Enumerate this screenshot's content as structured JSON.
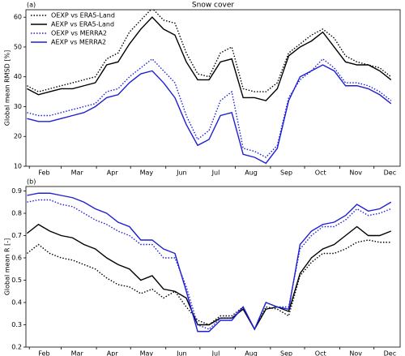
{
  "chart_data": [
    {
      "type": "line",
      "title": "Snow cover",
      "panel_label": "(a)",
      "ylabel": "Global mean RMSD [%]",
      "legend": "upper left",
      "x": [
        30,
        40,
        50,
        60,
        70,
        80,
        90,
        100,
        110,
        120,
        130,
        140,
        150,
        160,
        170,
        180,
        190,
        200,
        210,
        220,
        230,
        240,
        250,
        260,
        270,
        280,
        290,
        300,
        310,
        320,
        330,
        340,
        350
      ],
      "xlim": [
        29,
        358
      ],
      "xticks": [
        {
          "value": 45,
          "label": "Feb"
        },
        {
          "value": 74,
          "label": "Mar"
        },
        {
          "value": 105,
          "label": "Apr"
        },
        {
          "value": 135,
          "label": "May"
        },
        {
          "value": 166,
          "label": "Jun"
        },
        {
          "value": 196,
          "label": "Jul"
        },
        {
          "value": 227,
          "label": "Aug"
        },
        {
          "value": 258,
          "label": "Sep"
        },
        {
          "value": 288,
          "label": "Oct"
        },
        {
          "value": 319,
          "label": "Nov"
        },
        {
          "value": 349,
          "label": "Dec"
        }
      ],
      "xminorticks": [
        32,
        60,
        91,
        121,
        152,
        182,
        213,
        244,
        274,
        305,
        335
      ],
      "ylim": [
        10,
        62.5
      ],
      "yticks": [
        10,
        20,
        30,
        40,
        50,
        60
      ],
      "series": [
        {
          "name": "OEXP vs ERA5-Land",
          "color": "#000000",
          "linestyle": "dotted",
          "values": [
            37,
            35,
            36,
            37,
            38,
            39,
            40,
            46,
            48,
            55,
            59,
            63,
            59,
            58,
            48,
            41,
            40,
            48,
            50,
            36,
            35,
            35,
            38,
            48,
            51,
            54,
            56,
            53,
            47,
            45,
            44,
            43,
            40
          ]
        },
        {
          "name": "AEXP vs ERA5-Land",
          "color": "#000000",
          "linestyle": "solid",
          "values": [
            36,
            34,
            35,
            36,
            36,
            37,
            38,
            44,
            45,
            51,
            56,
            60,
            56,
            54,
            45,
            39,
            39,
            45,
            46,
            33,
            33,
            32,
            36,
            47,
            50,
            52,
            55,
            50,
            45,
            44,
            44,
            42,
            39
          ]
        },
        {
          "name": "OEXP vs MERRA2",
          "color": "#1f1fd6",
          "linestyle": "dotted",
          "values": [
            28,
            27,
            27,
            28,
            29,
            30,
            31,
            35,
            36,
            40,
            43,
            46,
            42,
            38,
            27,
            19,
            22,
            32,
            35,
            16,
            15,
            13,
            17,
            33,
            39,
            42,
            46,
            43,
            38,
            38,
            37,
            35,
            32
          ]
        },
        {
          "name": "AEXP vs MERRA2",
          "color": "#1f1fd6",
          "linestyle": "solid",
          "values": [
            26,
            25,
            25,
            26,
            27,
            28,
            30,
            33,
            34,
            38,
            41,
            42,
            38,
            33,
            24,
            17,
            19,
            27,
            28,
            14,
            13,
            11,
            16,
            32,
            40,
            42,
            44,
            42,
            37,
            37,
            36,
            34,
            31
          ]
        }
      ]
    },
    {
      "type": "line",
      "panel_label": "(b)",
      "ylabel": "Global mean R [-]",
      "x": [
        30,
        40,
        50,
        60,
        70,
        80,
        90,
        100,
        110,
        120,
        130,
        140,
        150,
        160,
        170,
        180,
        190,
        200,
        210,
        220,
        230,
        240,
        250,
        260,
        270,
        280,
        290,
        300,
        310,
        320,
        330,
        340,
        350
      ],
      "xlim": [
        29,
        358
      ],
      "xticks": [
        {
          "value": 45,
          "label": "Feb"
        },
        {
          "value": 74,
          "label": "Mar"
        },
        {
          "value": 105,
          "label": "Apr"
        },
        {
          "value": 135,
          "label": "May"
        },
        {
          "value": 166,
          "label": "Jun"
        },
        {
          "value": 196,
          "label": "Jul"
        },
        {
          "value": 227,
          "label": "Aug"
        },
        {
          "value": 258,
          "label": "Sep"
        },
        {
          "value": 288,
          "label": "Oct"
        },
        {
          "value": 319,
          "label": "Nov"
        },
        {
          "value": 349,
          "label": "Dec"
        }
      ],
      "xminorticks": [
        32,
        60,
        91,
        121,
        152,
        182,
        213,
        244,
        274,
        305,
        335
      ],
      "ylim": [
        0.2,
        0.92
      ],
      "yticks": [
        0.2,
        0.3,
        0.4,
        0.5,
        0.6,
        0.7,
        0.8,
        0.9
      ],
      "series": [
        {
          "color": "#000000",
          "linestyle": "dotted",
          "values": [
            0.62,
            0.66,
            0.62,
            0.6,
            0.59,
            0.57,
            0.55,
            0.51,
            0.48,
            0.47,
            0.44,
            0.46,
            0.42,
            0.45,
            0.38,
            0.32,
            0.3,
            0.34,
            0.34,
            0.38,
            0.28,
            0.38,
            0.37,
            0.34,
            0.52,
            0.58,
            0.62,
            0.62,
            0.64,
            0.67,
            0.68,
            0.67,
            0.67
          ]
        },
        {
          "color": "#000000",
          "linestyle": "solid",
          "values": [
            0.71,
            0.75,
            0.72,
            0.7,
            0.69,
            0.66,
            0.64,
            0.6,
            0.57,
            0.55,
            0.5,
            0.52,
            0.46,
            0.45,
            0.42,
            0.3,
            0.3,
            0.33,
            0.33,
            0.37,
            0.28,
            0.37,
            0.38,
            0.36,
            0.53,
            0.6,
            0.64,
            0.66,
            0.7,
            0.74,
            0.7,
            0.7,
            0.72
          ]
        },
        {
          "color": "#1f1fd6",
          "linestyle": "dotted",
          "values": [
            0.85,
            0.86,
            0.86,
            0.84,
            0.83,
            0.8,
            0.77,
            0.75,
            0.72,
            0.7,
            0.66,
            0.66,
            0.6,
            0.6,
            0.47,
            0.3,
            0.28,
            0.33,
            0.33,
            0.38,
            0.28,
            0.4,
            0.38,
            0.38,
            0.64,
            0.7,
            0.74,
            0.74,
            0.77,
            0.82,
            0.79,
            0.8,
            0.82
          ]
        },
        {
          "color": "#1f1fd6",
          "linestyle": "solid",
          "values": [
            0.88,
            0.89,
            0.89,
            0.88,
            0.87,
            0.85,
            0.82,
            0.8,
            0.76,
            0.74,
            0.68,
            0.68,
            0.64,
            0.62,
            0.45,
            0.27,
            0.27,
            0.32,
            0.32,
            0.38,
            0.28,
            0.4,
            0.38,
            0.37,
            0.66,
            0.72,
            0.75,
            0.76,
            0.79,
            0.84,
            0.81,
            0.82,
            0.85
          ]
        }
      ]
    }
  ]
}
